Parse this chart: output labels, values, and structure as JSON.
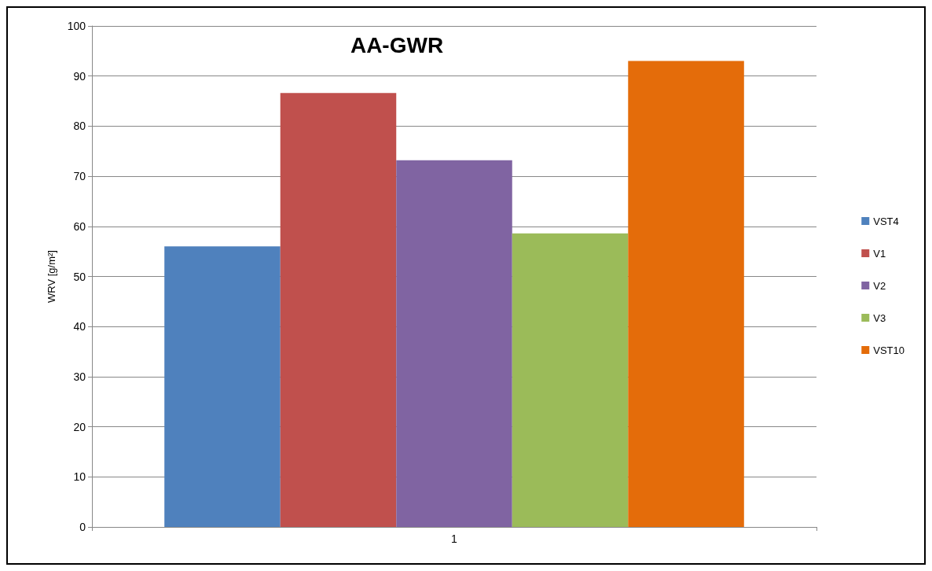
{
  "chart_data": {
    "type": "bar",
    "title": "AA-GWR",
    "ylabel": "WRV [g/m²]",
    "categories": [
      "1"
    ],
    "series": [
      {
        "name": "VST4",
        "color": "#4f81bd",
        "values": [
          56
        ]
      },
      {
        "name": "V1",
        "color": "#c0504d",
        "values": [
          86.6
        ]
      },
      {
        "name": "V2",
        "color": "#8064a2",
        "values": [
          73.2
        ]
      },
      {
        "name": "V3",
        "color": "#9bbb59",
        "values": [
          58.6
        ]
      },
      {
        "name": "VST10",
        "color": "#e46c0a",
        "values": [
          93
        ]
      }
    ],
    "ylim": [
      0,
      100
    ],
    "yticks": [
      0,
      10,
      20,
      30,
      40,
      50,
      60,
      70,
      80,
      90,
      100
    ],
    "grid": "y",
    "legend": "right"
  }
}
